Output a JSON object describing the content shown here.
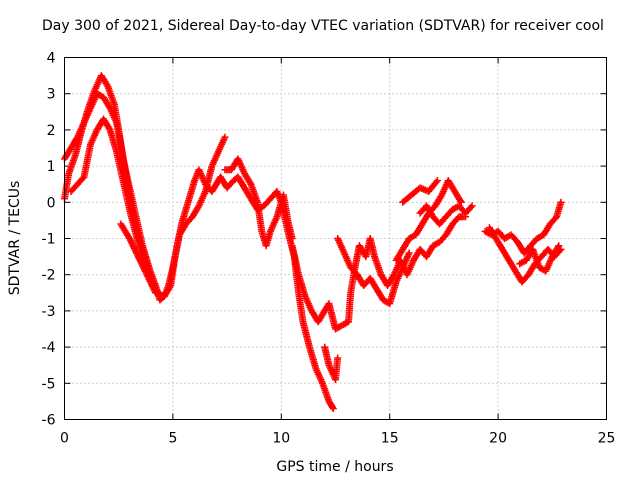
{
  "chart_data": {
    "type": "scatter",
    "title": "Day 300 of 2021, Sidereal Day-to-day VTEC variation (SDTVAR) for receiver cool",
    "xlabel": "GPS time / hours",
    "ylabel": "SDTVAR / TECUs",
    "xlim": [
      0,
      25
    ],
    "ylim": [
      -6,
      4
    ],
    "xticks": [
      0,
      5,
      10,
      15,
      20,
      25
    ],
    "yticks": [
      -6,
      -5,
      -4,
      -3,
      -2,
      -1,
      0,
      1,
      2,
      3,
      4
    ],
    "grid": true,
    "marker": "+",
    "series": [
      {
        "name": "SDTVAR",
        "color": "#ff0000",
        "tracks": [
          [
            [
              0.0,
              0.1
            ],
            [
              0.2,
              0.8
            ],
            [
              0.5,
              1.3
            ],
            [
              0.8,
              2.0
            ],
            [
              1.1,
              2.6
            ],
            [
              1.4,
              3.1
            ],
            [
              1.7,
              3.5
            ],
            [
              2.0,
              3.2
            ],
            [
              2.3,
              2.7
            ],
            [
              2.5,
              2.0
            ],
            [
              2.7,
              1.2
            ],
            [
              3.0,
              0.4
            ],
            [
              3.3,
              -0.4
            ],
            [
              3.6,
              -1.2
            ],
            [
              3.9,
              -1.8
            ],
            [
              4.2,
              -2.3
            ],
            [
              4.4,
              -2.7
            ],
            [
              4.6,
              -2.6
            ],
            [
              4.8,
              -2.3
            ],
            [
              5.0,
              -1.8
            ],
            [
              5.2,
              -1.2
            ],
            [
              5.4,
              -0.6
            ],
            [
              5.6,
              -0.2
            ],
            [
              5.8,
              0.2
            ],
            [
              6.0,
              0.6
            ],
            [
              6.2,
              0.9
            ],
            [
              6.5,
              0.5
            ],
            [
              6.8,
              0.3
            ],
            [
              7.0,
              0.5
            ],
            [
              7.2,
              0.7
            ],
            [
              7.5,
              0.4
            ],
            [
              7.8,
              0.6
            ],
            [
              8.0,
              0.7
            ],
            [
              8.3,
              0.4
            ],
            [
              8.6,
              0.1
            ],
            [
              8.9,
              -0.2
            ],
            [
              9.2,
              -0.1
            ],
            [
              9.5,
              0.1
            ],
            [
              9.8,
              0.3
            ],
            [
              10.0,
              0.0
            ],
            [
              10.3,
              -0.8
            ],
            [
              10.6,
              -1.5
            ],
            [
              10.8,
              -2.5
            ],
            [
              11.0,
              -3.3
            ],
            [
              11.3,
              -4.0
            ],
            [
              11.6,
              -4.6
            ],
            [
              11.9,
              -5.0
            ],
            [
              12.2,
              -5.5
            ],
            [
              12.4,
              -5.7
            ]
          ],
          [
            [
              0.0,
              1.2
            ],
            [
              0.3,
              1.5
            ],
            [
              0.6,
              1.8
            ],
            [
              0.9,
              2.2
            ],
            [
              1.2,
              2.6
            ],
            [
              1.5,
              3.0
            ],
            [
              1.8,
              2.9
            ],
            [
              2.1,
              2.6
            ],
            [
              2.4,
              2.2
            ],
            [
              2.6,
              1.6
            ],
            [
              2.8,
              0.9
            ],
            [
              3.0,
              0.2
            ],
            [
              3.2,
              -0.5
            ],
            [
              3.5,
              -1.1
            ],
            [
              3.8,
              -1.7
            ],
            [
              4.0,
              -2.1
            ]
          ],
          [
            [
              0.3,
              0.3
            ],
            [
              0.6,
              0.5
            ],
            [
              0.9,
              0.7
            ],
            [
              1.2,
              1.6
            ],
            [
              1.5,
              2.0
            ],
            [
              1.8,
              2.3
            ],
            [
              2.1,
              2.0
            ],
            [
              2.4,
              1.4
            ],
            [
              2.7,
              0.6
            ],
            [
              3.0,
              -0.2
            ],
            [
              3.3,
              -0.9
            ],
            [
              3.6,
              -1.5
            ],
            [
              3.9,
              -2.0
            ],
            [
              4.2,
              -2.4
            ],
            [
              4.5,
              -2.6
            ]
          ],
          [
            [
              2.6,
              -0.6
            ],
            [
              3.0,
              -1.0
            ],
            [
              3.4,
              -1.5
            ],
            [
              3.8,
              -2.0
            ],
            [
              4.2,
              -2.5
            ],
            [
              4.6,
              -2.6
            ],
            [
              4.9,
              -2.3
            ],
            [
              5.1,
              -1.5
            ],
            [
              5.3,
              -0.9
            ],
            [
              5.6,
              -0.6
            ],
            [
              5.9,
              -0.4
            ],
            [
              6.2,
              -0.1
            ],
            [
              6.5,
              0.3
            ],
            [
              6.8,
              1.0
            ],
            [
              7.1,
              1.4
            ],
            [
              7.4,
              1.8
            ]
          ],
          [
            [
              7.4,
              0.9
            ],
            [
              7.7,
              0.9
            ],
            [
              8.0,
              1.2
            ],
            [
              8.3,
              0.8
            ],
            [
              8.6,
              0.5
            ],
            [
              8.9,
              0.0
            ],
            [
              9.1,
              -0.8
            ],
            [
              9.3,
              -1.2
            ],
            [
              9.5,
              -0.8
            ],
            [
              9.8,
              -0.4
            ],
            [
              10.1,
              0.2
            ],
            [
              10.3,
              -0.5
            ],
            [
              10.5,
              -1.0
            ]
          ],
          [
            [
              10.5,
              -1.2
            ],
            [
              10.8,
              -2.0
            ],
            [
              11.1,
              -2.6
            ],
            [
              11.4,
              -3.0
            ],
            [
              11.7,
              -3.3
            ],
            [
              12.0,
              -3.0
            ],
            [
              12.2,
              -2.8
            ],
            [
              12.5,
              -3.5
            ],
            [
              12.8,
              -3.4
            ],
            [
              13.1,
              -3.3
            ],
            [
              13.2,
              -2.5
            ],
            [
              13.4,
              -1.8
            ],
            [
              13.6,
              -1.2
            ],
            [
              13.9,
              -1.5
            ],
            [
              14.1,
              -1.0
            ],
            [
              14.3,
              -1.5
            ],
            [
              14.6,
              -2.0
            ],
            [
              14.9,
              -2.3
            ],
            [
              15.2,
              -2.0
            ],
            [
              15.5,
              -1.6
            ],
            [
              15.8,
              -2.0
            ],
            [
              16.1,
              -1.6
            ],
            [
              16.4,
              -1.3
            ],
            [
              16.7,
              -1.5
            ],
            [
              17.0,
              -1.2
            ],
            [
              17.3,
              -1.1
            ],
            [
              17.6,
              -0.9
            ],
            [
              17.9,
              -0.6
            ],
            [
              18.2,
              -0.4
            ],
            [
              18.5,
              -0.4
            ]
          ],
          [
            [
              12.0,
              -4.0
            ],
            [
              12.2,
              -4.5
            ],
            [
              12.5,
              -4.9
            ],
            [
              12.6,
              -4.3
            ]
          ],
          [
            [
              12.6,
              -1.0
            ],
            [
              12.9,
              -1.4
            ],
            [
              13.2,
              -1.8
            ],
            [
              13.5,
              -2.0
            ],
            [
              13.8,
              -2.3
            ],
            [
              14.1,
              -2.1
            ],
            [
              14.4,
              -2.4
            ],
            [
              14.7,
              -2.7
            ],
            [
              15.0,
              -2.8
            ],
            [
              15.3,
              -2.2
            ],
            [
              15.6,
              -1.8
            ],
            [
              15.9,
              -1.4
            ]
          ],
          [
            [
              15.3,
              -1.6
            ],
            [
              15.6,
              -1.3
            ],
            [
              15.9,
              -1.0
            ],
            [
              16.2,
              -0.9
            ],
            [
              16.5,
              -0.6
            ],
            [
              16.8,
              -0.3
            ],
            [
              17.1,
              -0.1
            ],
            [
              17.4,
              0.2
            ],
            [
              17.7,
              0.6
            ],
            [
              18.0,
              0.3
            ],
            [
              18.3,
              0.0
            ]
          ],
          [
            [
              16.4,
              -0.3
            ],
            [
              16.7,
              -0.1
            ],
            [
              17.0,
              -0.4
            ],
            [
              17.3,
              -0.6
            ],
            [
              17.6,
              -0.4
            ],
            [
              17.9,
              -0.2
            ],
            [
              18.2,
              -0.1
            ],
            [
              18.5,
              -0.3
            ],
            [
              18.8,
              -0.1
            ]
          ],
          [
            [
              15.6,
              0.0
            ],
            [
              16.0,
              0.2
            ],
            [
              16.4,
              0.4
            ],
            [
              16.8,
              0.3
            ],
            [
              17.2,
              0.6
            ]
          ],
          [
            [
              19.6,
              -0.7
            ],
            [
              19.9,
              -1.0
            ],
            [
              20.2,
              -1.3
            ],
            [
              20.5,
              -1.6
            ],
            [
              20.8,
              -1.9
            ],
            [
              21.1,
              -2.2
            ],
            [
              21.4,
              -2.0
            ],
            [
              21.7,
              -1.7
            ],
            [
              22.0,
              -1.5
            ],
            [
              22.3,
              -1.3
            ],
            [
              22.6,
              -1.5
            ],
            [
              22.9,
              -1.3
            ]
          ],
          [
            [
              19.4,
              -0.8
            ],
            [
              19.7,
              -0.9
            ],
            [
              20.0,
              -0.8
            ],
            [
              20.3,
              -1.0
            ],
            [
              20.6,
              -0.9
            ],
            [
              20.9,
              -1.1
            ],
            [
              21.2,
              -1.4
            ],
            [
              21.5,
              -1.2
            ],
            [
              21.8,
              -1.0
            ],
            [
              22.1,
              -0.9
            ],
            [
              22.4,
              -0.6
            ],
            [
              22.7,
              -0.4
            ],
            [
              22.9,
              0.0
            ]
          ],
          [
            [
              21.0,
              -1.7
            ],
            [
              21.3,
              -1.6
            ],
            [
              21.6,
              -1.3
            ],
            [
              21.9,
              -1.8
            ],
            [
              22.2,
              -1.9
            ],
            [
              22.5,
              -1.5
            ],
            [
              22.8,
              -1.2
            ]
          ]
        ]
      }
    ]
  }
}
